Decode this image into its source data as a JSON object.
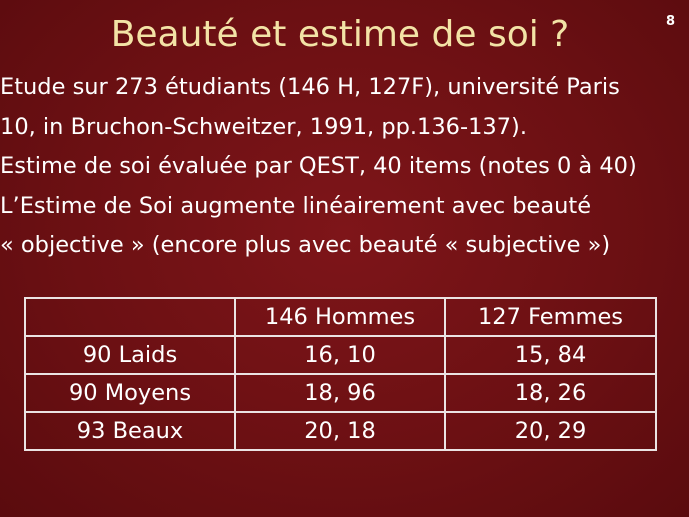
{
  "slide": {
    "title": "Beauté et estime de soi ?",
    "number": "8"
  },
  "body_lines": [
    "Etude sur 273 étudiants (146 H, 127F), université Paris",
    "10, in Bruchon-Schweitzer, 1991, pp.136-137).",
    "Estime de soi évaluée par QEST, 40 items (notes 0 à 40)",
    "L’Estime de Soi augmente linéairement avec beauté",
    "« objective » (encore plus avec beauté « subjective »)"
  ],
  "table": {
    "headers": [
      "",
      "146 Hommes",
      "127 Femmes"
    ],
    "rows": [
      [
        "90 Laids",
        "16, 10",
        "15, 84"
      ],
      [
        "90 Moyens",
        "18, 96",
        "18, 26"
      ],
      [
        "93 Beaux",
        "20, 18",
        "20, 29"
      ]
    ]
  },
  "colors": {
    "background": "#6c1013",
    "title": "#f3e3a6",
    "text": "#ffffff",
    "table_border": "#ebe3e3"
  }
}
